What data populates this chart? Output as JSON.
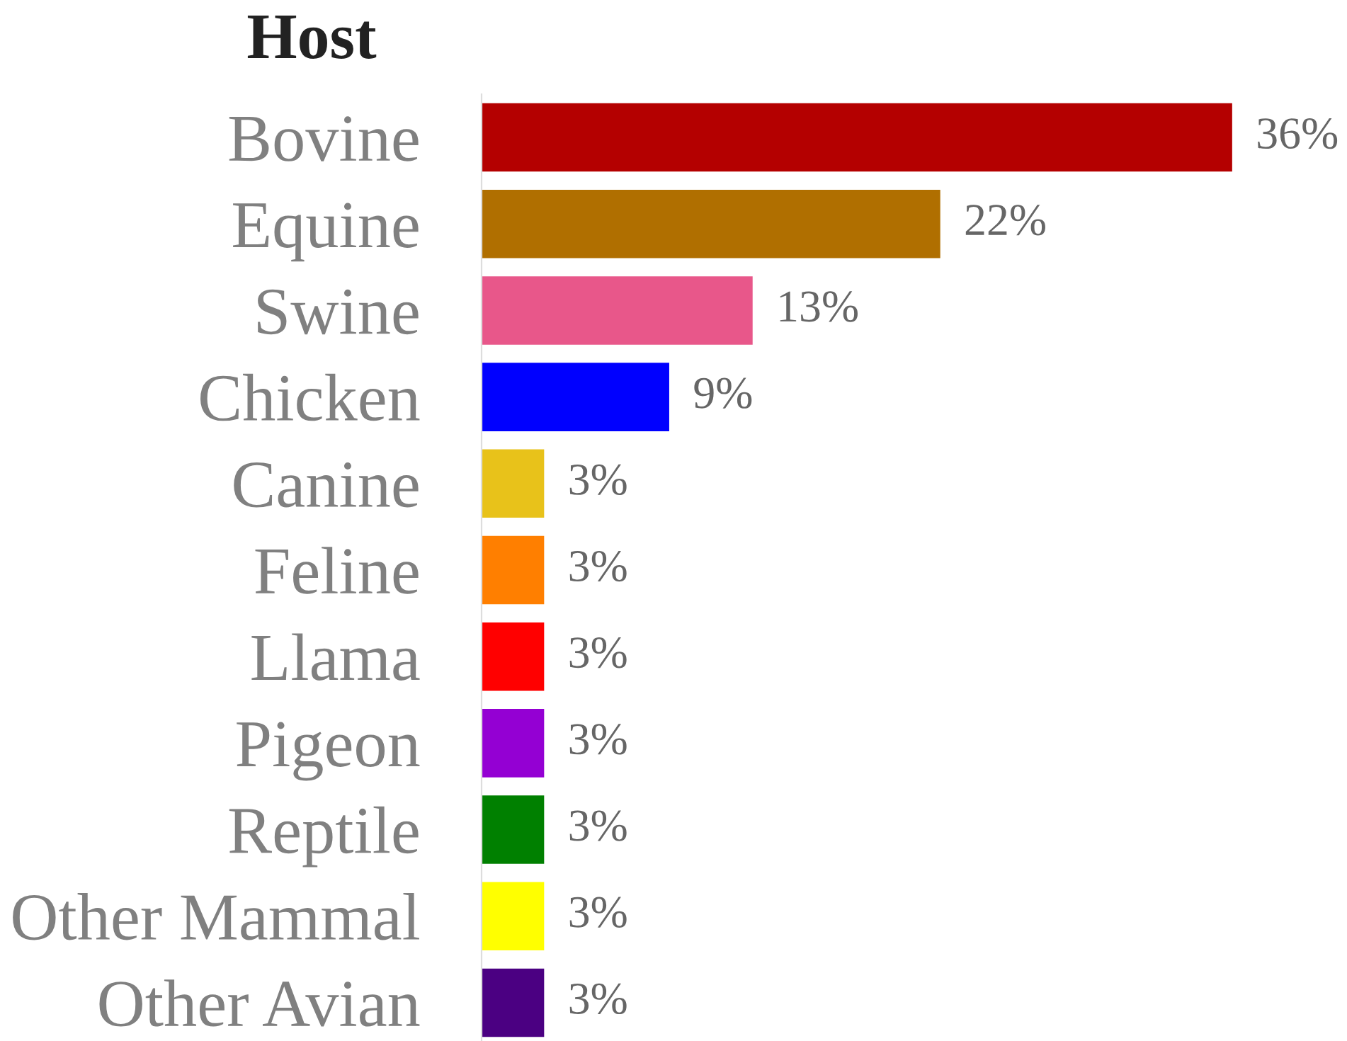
{
  "chart_data": {
    "type": "bar",
    "orientation": "horizontal",
    "title": "Host",
    "categories": [
      "Bovine",
      "Equine",
      "Swine",
      "Chicken",
      "Canine",
      "Feline",
      "Llama",
      "Pigeon",
      "Reptile",
      "Other Mammal",
      "Other Avian"
    ],
    "values": [
      36,
      22,
      13,
      9,
      3,
      3,
      3,
      3,
      3,
      3,
      3
    ],
    "value_labels": [
      "36%",
      "22%",
      "13%",
      "9%",
      "3%",
      "3%",
      "3%",
      "3%",
      "3%",
      "3%",
      "3%"
    ],
    "colors": [
      "#b40000",
      "#b06f00",
      "#e8578a",
      "#0000ff",
      "#e8c21a",
      "#ff7f00",
      "#ff0000",
      "#9400d3",
      "#008000",
      "#ffff00",
      "#4b0082"
    ],
    "grid": false,
    "legend": false
  }
}
